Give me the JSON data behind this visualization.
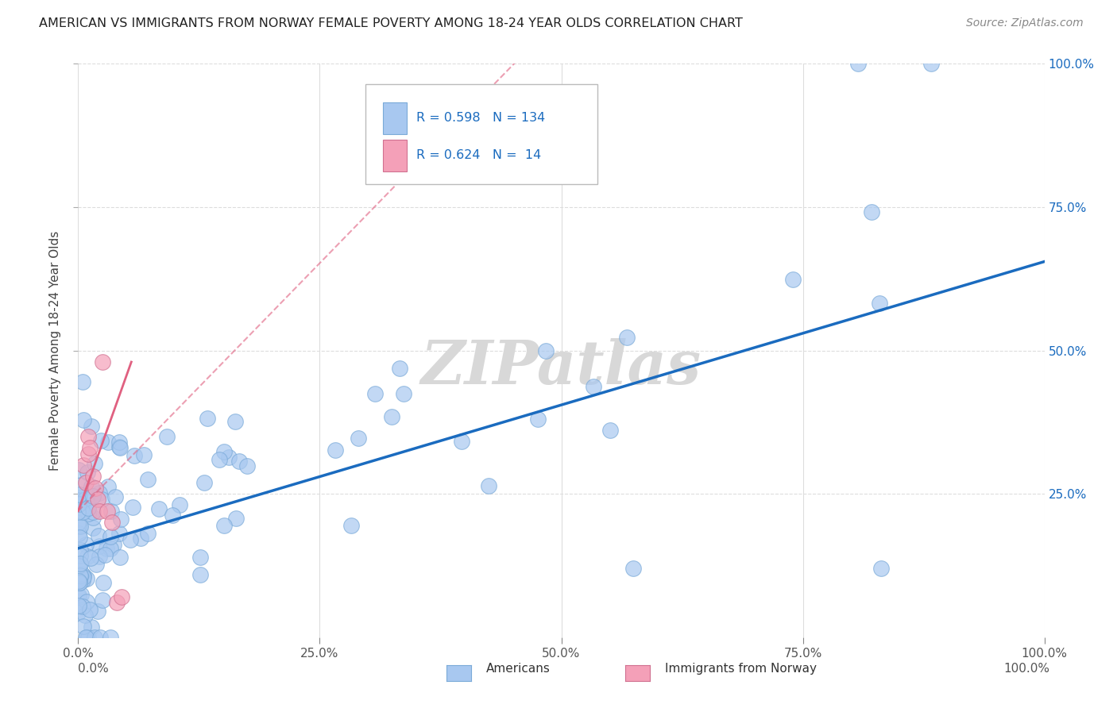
{
  "title": "AMERICAN VS IMMIGRANTS FROM NORWAY FEMALE POVERTY AMONG 18-24 YEAR OLDS CORRELATION CHART",
  "source": "Source: ZipAtlas.com",
  "ylabel": "Female Poverty Among 18-24 Year Olds",
  "xlim": [
    0.0,
    1.0
  ],
  "ylim": [
    0.0,
    1.0
  ],
  "xticks": [
    0.0,
    0.25,
    0.5,
    0.75,
    1.0
  ],
  "yticks": [
    0.25,
    0.5,
    0.75,
    1.0
  ],
  "xticklabels": [
    "0.0%",
    "25.0%",
    "50.0%",
    "75.0%",
    "100.0%"
  ],
  "yticklabels": [
    "25.0%",
    "50.0%",
    "75.0%",
    "100.0%"
  ],
  "legend_r": [
    0.598,
    0.624
  ],
  "legend_n": [
    134,
    14
  ],
  "blue_color": "#a8c8f0",
  "pink_color": "#f4a0b8",
  "blue_line_color": "#1a6bbf",
  "pink_line_color": "#e06080",
  "watermark": "ZIPatlas",
  "watermark_color": "#d8d8d8",
  "blue_trend": [
    0.0,
    1.0,
    0.155,
    0.655
  ],
  "pink_trend_solid": [
    0.0,
    0.055,
    0.22,
    0.48
  ],
  "pink_trend_dash": [
    0.0,
    0.48,
    0.22,
    1.05
  ]
}
